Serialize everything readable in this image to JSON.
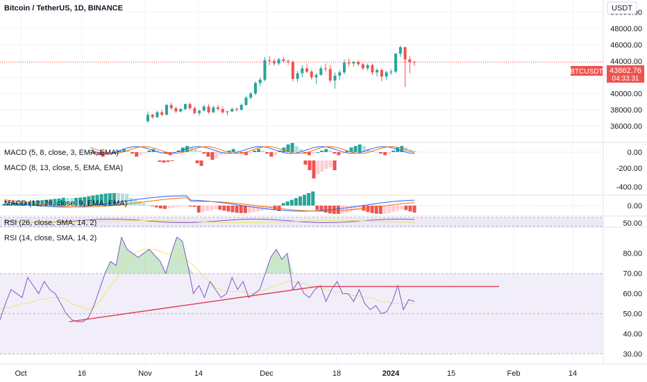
{
  "header": {
    "symbol_title": "Bitcoin / TetherUS, 1D, BINANCE",
    "currency": "USDT"
  },
  "price_tag": {
    "symbol": "BTCUSDT",
    "price": "43862.76",
    "countdown": "04:33:31"
  },
  "colors": {
    "up": "#26a69a",
    "down": "#ef5350",
    "pale_up": "#b2dfdb",
    "pale_down": "#ffcdd2",
    "rsi_line": "#7e57c2",
    "rsi_ma": "#e7e76a",
    "trendline": "#e0455a",
    "rsi_band": "#ede7f6",
    "macd_line": "#2962ff",
    "signal_line": "#ff6d00"
  },
  "chart_data": [
    {
      "type": "candlestick",
      "title": "Bitcoin / TetherUS, 1D, BINANCE",
      "y_axis_ticks": [
        "50000.00",
        "48000.00",
        "46000.00",
        "44000.00",
        "42000.00",
        "40000.00",
        "38000.00",
        "36000.00"
      ],
      "x_axis_ticks": [
        "Oct",
        "16",
        "Nov",
        "14",
        "Dec",
        "18",
        "2024",
        "15",
        "Feb",
        "14"
      ],
      "ylim": [
        34000,
        51500
      ],
      "last_price": 43862.76,
      "candles": [
        [
          36600,
          37800,
          36400,
          37400
        ],
        [
          37400,
          37500,
          36900,
          37100
        ],
        [
          37100,
          37900,
          37000,
          37700
        ],
        [
          37700,
          38000,
          37200,
          37400
        ],
        [
          37400,
          38700,
          37300,
          38600
        ],
        [
          38600,
          38900,
          38000,
          38200
        ],
        [
          38200,
          38400,
          37600,
          37800
        ],
        [
          37800,
          38200,
          37700,
          38100
        ],
        [
          38100,
          38800,
          37900,
          38700
        ],
        [
          38700,
          38900,
          38000,
          38200
        ],
        [
          38200,
          38400,
          37400,
          37600
        ],
        [
          37600,
          38000,
          37300,
          37900
        ],
        [
          37900,
          38600,
          37800,
          38400
        ],
        [
          38400,
          38700,
          37500,
          37700
        ],
        [
          37700,
          38500,
          37600,
          38300
        ],
        [
          38300,
          38600,
          37900,
          38100
        ],
        [
          38100,
          38400,
          37500,
          37700
        ],
        [
          37700,
          37900,
          37300,
          37800
        ],
        [
          37800,
          38300,
          37700,
          38100
        ],
        [
          38100,
          38300,
          37800,
          38000
        ],
        [
          38000,
          38800,
          37900,
          38600
        ],
        [
          38600,
          39700,
          38500,
          39500
        ],
        [
          39500,
          40200,
          39300,
          40000
        ],
        [
          40000,
          41500,
          39800,
          41300
        ],
        [
          41300,
          42000,
          40900,
          41700
        ],
        [
          41700,
          44500,
          41500,
          44100
        ],
        [
          44100,
          44600,
          43500,
          44000
        ],
        [
          44000,
          44300,
          43400,
          43700
        ],
        [
          43700,
          44400,
          43500,
          44200
        ],
        [
          44200,
          44500,
          43800,
          44000
        ],
        [
          44000,
          44200,
          43500,
          43900
        ],
        [
          43900,
          44100,
          41500,
          41800
        ],
        [
          41800,
          42800,
          41400,
          42500
        ],
        [
          42500,
          43500,
          42000,
          43100
        ],
        [
          43100,
          43600,
          42500,
          42700
        ],
        [
          42700,
          42900,
          41700,
          42000
        ],
        [
          42000,
          42500,
          41200,
          42300
        ],
        [
          42300,
          43400,
          42200,
          43100
        ],
        [
          43100,
          43700,
          42700,
          43000
        ],
        [
          43000,
          43500,
          41300,
          41600
        ],
        [
          41600,
          42600,
          40600,
          42200
        ],
        [
          42200,
          42900,
          41700,
          42600
        ],
        [
          42600,
          44200,
          42400,
          43800
        ],
        [
          43800,
          44300,
          43300,
          43700
        ],
        [
          43700,
          44000,
          43300,
          43900
        ],
        [
          43900,
          44100,
          43400,
          43600
        ],
        [
          43600,
          43800,
          42900,
          43100
        ],
        [
          43100,
          43700,
          42800,
          43500
        ],
        [
          43500,
          43700,
          42300,
          42600
        ],
        [
          42600,
          43100,
          42100,
          42900
        ],
        [
          42900,
          43100,
          41500,
          42100
        ],
        [
          42100,
          42800,
          41700,
          42600
        ],
        [
          42600,
          43000,
          42300,
          42700
        ],
        [
          42700,
          45000,
          42500,
          44900
        ],
        [
          44900,
          45900,
          44500,
          45700
        ],
        [
          45700,
          45800,
          40800,
          44200
        ],
        [
          44200,
          44600,
          42500,
          43900
        ],
        [
          43900,
          44000,
          43400,
          43862.76
        ]
      ]
    },
    {
      "type": "histogram",
      "title": "MACD (5, 8, close, 3, EMA, EMA)",
      "y_axis_ticks": [
        "0.00"
      ],
      "note": "short MACD histogram with MACD and signal lines"
    },
    {
      "type": "histogram",
      "title": "MACD (8, 13, close, 5, EMA, EMA)",
      "y_axis_ticks": [
        "-200.00",
        "-400.00"
      ],
      "note": "MACD histogram drawn below zero line"
    },
    {
      "type": "histogram",
      "title": "MACD (12, 26, close, 9, EMA, EMA)",
      "y_axis_ticks": [
        "0.00"
      ]
    },
    {
      "type": "line",
      "title": "RSI (26, close, SMA, 14, 2)",
      "y_axis_ticks": [
        "50.00"
      ]
    },
    {
      "type": "line",
      "title": "RSI (14, close, SMA, 14, 2)",
      "ylim": [
        25,
        92
      ],
      "y_axis_ticks": [
        "80.00",
        "70.00",
        "60.00",
        "50.00",
        "40.00",
        "30.00"
      ],
      "band": [
        30,
        70
      ],
      "rsi": [
        47,
        55,
        62,
        60,
        58,
        68,
        64,
        60,
        66,
        62,
        60,
        55,
        50,
        47,
        46,
        46,
        48,
        54,
        62,
        70,
        76,
        74,
        88,
        82,
        80,
        78,
        80,
        82,
        79,
        76,
        70,
        80,
        88,
        86,
        74,
        60,
        64,
        58,
        66,
        62,
        58,
        60,
        68,
        62,
        66,
        58,
        60,
        62,
        70,
        78,
        82,
        77,
        80,
        62,
        66,
        60,
        58,
        62,
        64,
        56,
        62,
        66,
        60,
        60,
        56,
        62,
        55,
        52,
        54,
        50,
        51,
        56,
        64,
        52,
        57,
        56
      ],
      "rsi_ma": [
        52,
        53,
        53,
        54,
        55,
        55,
        56,
        57,
        57,
        58,
        58,
        58,
        57,
        55,
        54,
        53,
        52,
        53,
        56,
        60,
        64,
        67,
        72,
        76,
        79,
        81,
        82,
        82,
        82,
        81,
        80,
        79,
        79,
        78,
        76,
        74,
        71,
        68,
        66,
        63,
        62,
        61,
        61,
        61,
        61,
        60,
        60,
        61,
        62,
        63,
        64,
        65,
        66,
        66,
        65,
        65,
        64,
        63,
        63,
        62,
        61,
        61,
        60,
        60,
        59,
        59,
        58,
        58,
        57,
        56,
        56,
        55,
        55,
        55,
        55,
        55
      ],
      "support_line": [
        [
          46,
          0
        ],
        [
          64,
          24
        ]
      ],
      "resistance_value": 63.5
    }
  ]
}
